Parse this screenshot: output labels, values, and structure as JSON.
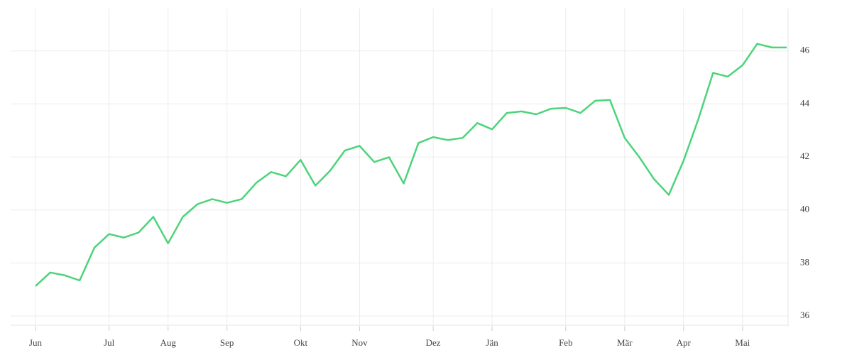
{
  "chart_data": {
    "type": "line",
    "categories": [
      "Jun",
      null,
      null,
      null,
      null,
      "Jul",
      null,
      null,
      null,
      "Aug",
      null,
      null,
      null,
      "Sep",
      null,
      null,
      null,
      null,
      "Okt",
      null,
      null,
      null,
      "Nov",
      null,
      null,
      null,
      null,
      "Dez",
      null,
      null,
      null,
      "Jän",
      null,
      null,
      null,
      null,
      "Feb",
      null,
      null,
      null,
      "Mär",
      null,
      null,
      null,
      "Apr",
      null,
      null,
      null,
      "Mai",
      null,
      null,
      null
    ],
    "series": [
      {
        "color": "#4cd47a",
        "values": [
          37.13,
          37.64,
          37.53,
          37.34,
          38.58,
          39.09,
          38.96,
          39.15,
          39.74,
          38.74,
          39.74,
          40.22,
          40.41,
          40.27,
          40.41,
          41.03,
          41.43,
          41.27,
          41.89,
          40.92,
          41.48,
          42.24,
          42.42,
          41.81,
          41.99,
          41.0,
          42.53,
          42.75,
          42.64,
          42.72,
          43.28,
          43.04,
          43.66,
          43.72,
          43.61,
          43.82,
          43.85,
          43.66,
          44.12,
          44.15,
          42.72,
          41.99,
          41.16,
          40.57,
          41.86,
          43.42,
          45.17,
          45.03,
          45.46,
          46.27,
          46.13,
          46.13
        ]
      }
    ],
    "ylim": [
      35.6,
      47.6
    ],
    "yticks": [
      36,
      38,
      40,
      42,
      44,
      46
    ],
    "grid": true
  }
}
